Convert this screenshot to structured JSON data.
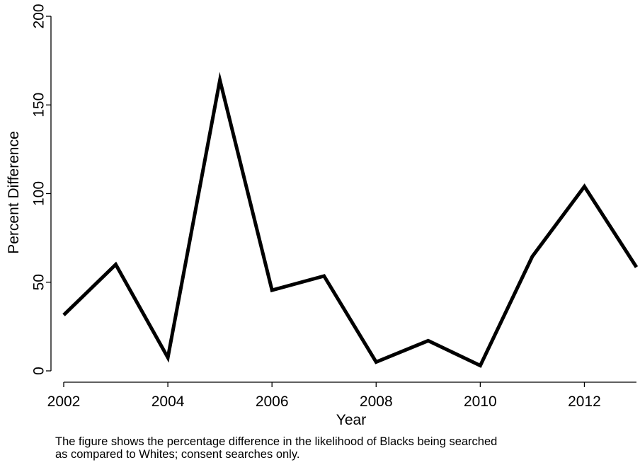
{
  "chart_data": {
    "type": "line",
    "title": "",
    "xlabel": "Year",
    "ylabel": "Percent Difference",
    "x_ticks": [
      2002,
      2004,
      2006,
      2008,
      2010,
      2012
    ],
    "y_ticks": [
      0,
      50,
      100,
      150,
      200
    ],
    "xlim": [
      2002,
      2013
    ],
    "ylim": [
      0,
      200
    ],
    "grid": false,
    "legend": "none",
    "line_color": "#000000",
    "series": [
      {
        "x": [
          2002,
          2003,
          2004,
          2005,
          2006,
          2007,
          2008,
          2009,
          2010,
          2011,
          2012,
          2013
        ],
        "values": [
          31.5,
          60,
          7.5,
          164,
          45.5,
          53.5,
          5,
          17,
          3,
          64.5,
          104,
          58.5
        ]
      }
    ]
  },
  "caption": {
    "line1": "The figure shows the percentage difference in the likelihood of Blacks being searched",
    "line2": "as compared to Whites; consent searches only."
  }
}
